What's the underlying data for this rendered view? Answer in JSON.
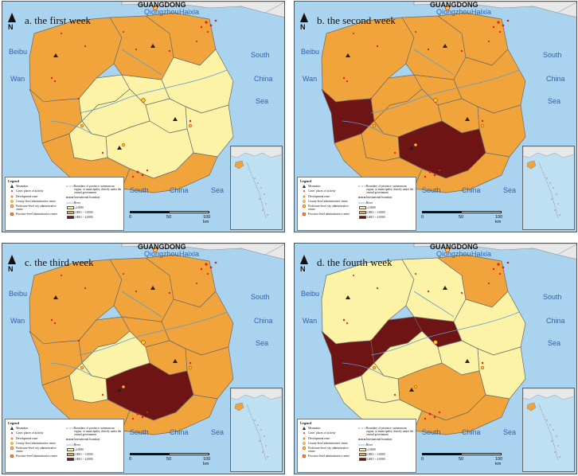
{
  "panels": [
    {
      "title": "a. the first week",
      "fills": {
        "A": "y",
        "B": "y",
        "C": "y",
        "D": "y",
        "E": "y",
        "F": "y",
        "G": "y",
        "H": "y",
        "I": "y",
        "J": "y",
        "K": "y"
      }
    },
    {
      "title": "b. the second week",
      "fills": {
        "NW": "d",
        "C": "d"
      }
    },
    {
      "title": "c. the third week",
      "fills": {
        "C": "d",
        "J": "y",
        "K": "y"
      }
    },
    {
      "title": "d. the fourth week",
      "fills": {
        "W": "y",
        "NW": "d",
        "A": "d",
        "B": "d",
        "N": "y",
        "E": "y",
        "F": "y",
        "G": "y",
        "J": "y",
        "K": "y",
        "SW": "y"
      }
    }
  ],
  "sea_labels": {
    "guangdong": "GUANGDONG",
    "qiongzhou": "Qiongzhou",
    "haixia": "Haixia",
    "beibu": "Beibu",
    "wan": "Wan",
    "south_east": "South",
    "china_east": "China",
    "sea_east": "Sea",
    "south_bottom": "South",
    "china_bottom": "China",
    "sea_bottom": "Sea"
  },
  "north_label": "N",
  "legend": {
    "title": "Legend",
    "items_left": [
      {
        "icon": "mountain-icon",
        "label": "Mountains"
      },
      {
        "icon": "case-dot-icon",
        "label": "Cases' places of activity"
      },
      {
        "icon": "dev-zone-icon",
        "label": "Development zone"
      },
      {
        "icon": "county-centre-icon",
        "label": "County-level administrative centre"
      },
      {
        "icon": "prefecture-centre-icon",
        "label": "Prefecture-level city administrative centre"
      },
      {
        "icon": "province-centre-icon",
        "label": "Province-level administrative centre"
      }
    ],
    "items_right": [
      {
        "icon": "admin-boundary-icon",
        "label": "Boundary of province, autonomous region, or municipality directly under the central government"
      },
      {
        "icon": "intl-boundary-icon",
        "label": "International boundary"
      },
      {
        "icon": "river-icon",
        "label": "River"
      },
      {
        "icon": "swatch-light",
        "label": "≤2.0000"
      },
      {
        "icon": "swatch-mid",
        "label": "2.0001 ~ 3.0000"
      },
      {
        "icon": "swatch-dark",
        "label": "3.0001 ~ 4.0000"
      }
    ]
  },
  "scale": {
    "zero": "0",
    "mid": "50",
    "end": "100 km"
  },
  "colors": {
    "sea": "#a9d3ef",
    "land": "#f1a33c",
    "light": "#fdf3a6",
    "dark": "#6e1414",
    "mainland": "#e8e8e8",
    "boundary": "#6b6b6b",
    "river": "#5b9bd5",
    "case": "#e31b23"
  }
}
